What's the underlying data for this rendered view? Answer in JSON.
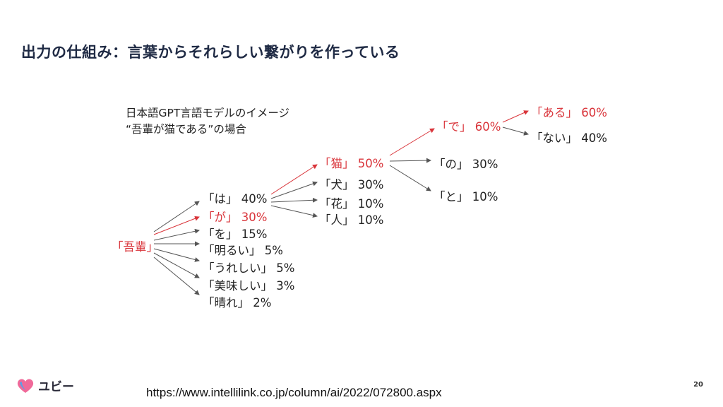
{
  "slide": {
    "title": "出力の仕組み：言葉からそれらしい繋がりを作っている",
    "caption_line1": "日本語GPT言語モデルのイメージ",
    "caption_line2": "“吾輩が猫である”の場合",
    "url": "https://www.intellilink.co.jp/column/ai/2022/072800.aspx",
    "page_number": "20"
  },
  "logo": {
    "text": "ユビー",
    "icon": "heart-icon",
    "colors": [
      "#f06a9a",
      "#5aa0e6"
    ]
  },
  "colors": {
    "highlight": "#d9343a",
    "text": "#222222",
    "arrow": "#555555"
  },
  "tree": {
    "root": "「吾輩」",
    "level1": [
      {
        "label": "「は」 40%"
      },
      {
        "label": "「が」 30%",
        "highlight": true
      },
      {
        "label": "「を」 15%"
      },
      {
        "label": "「明るい」 5%"
      },
      {
        "label": "「うれしい」 5%"
      },
      {
        "label": "「美味しい」 3%"
      },
      {
        "label": "「晴れ」 2%"
      }
    ],
    "level2": [
      {
        "label": "「猫」 50%",
        "highlight": true
      },
      {
        "label": "「犬」 30%"
      },
      {
        "label": "「花」 10%"
      },
      {
        "label": "「人」 10%"
      }
    ],
    "level3": [
      {
        "label": "「で」 60%",
        "highlight": true
      },
      {
        "label": "「の」 30%"
      },
      {
        "label": "「と」 10%"
      }
    ],
    "level4": [
      {
        "label": "「ある」 60%",
        "highlight": true
      },
      {
        "label": "「ない」 40%"
      }
    ]
  }
}
